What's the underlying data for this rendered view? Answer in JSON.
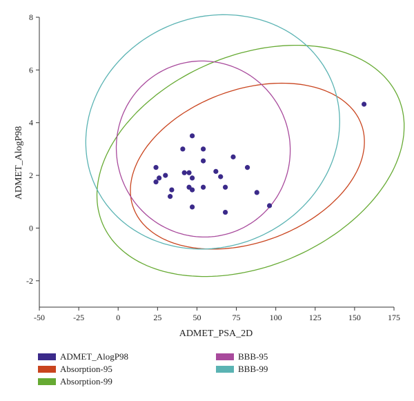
{
  "chart_data": {
    "type": "scatter",
    "xlabel": "ADMET_PSA_2D",
    "ylabel": "ADMET_AlogP98",
    "xlim": [
      -50,
      175
    ],
    "ylim": [
      -3,
      8
    ],
    "x_ticks": [
      -50,
      -25,
      0,
      25,
      50,
      75,
      100,
      125,
      150,
      175
    ],
    "y_ticks": [
      -2,
      0,
      2,
      4,
      6,
      8
    ],
    "grid": false,
    "legend_position": "bottom",
    "points": {
      "name": "ADMET_AlogP98",
      "color": "#3b2a8a",
      "x": [
        47,
        41,
        54,
        73,
        54,
        24,
        30,
        26,
        24,
        45,
        42,
        47,
        62,
        65,
        82,
        45,
        47,
        54,
        68,
        34,
        88,
        33,
        47,
        96,
        68,
        156
      ],
      "y": [
        3.5,
        3.0,
        3.0,
        2.7,
        2.55,
        2.3,
        2.0,
        1.9,
        1.75,
        2.1,
        2.1,
        1.9,
        2.15,
        1.95,
        2.3,
        1.55,
        1.45,
        1.55,
        1.55,
        1.45,
        1.35,
        1.2,
        0.8,
        0.85,
        0.6,
        4.7
      ]
    },
    "ellipses": [
      {
        "name": "Absorption-95",
        "color": "#c9441e",
        "cx": 82,
        "cy": 2.35,
        "rx": 77,
        "ry": 2.9,
        "angle": -20
      },
      {
        "name": "Absorption-99",
        "color": "#66aa33",
        "cx": 84,
        "cy": 2.55,
        "rx": 102,
        "ry": 4.0,
        "angle": -23
      },
      {
        "name": "BBB-95",
        "color": "#a84a9c",
        "cx": 54,
        "cy": 3.0,
        "rx": 55,
        "ry": 3.35,
        "angle": -25
      },
      {
        "name": "BBB-99",
        "color": "#5ab3b3",
        "cx": 60,
        "cy": 3.65,
        "rx": 82,
        "ry": 4.35,
        "angle": -24
      }
    ]
  },
  "legend": {
    "items": [
      {
        "label": "ADMET_AlogP98",
        "color": "#3b2a8a"
      },
      {
        "label": "Absorption-95",
        "color": "#c9441e"
      },
      {
        "label": "Absorption-99",
        "color": "#66aa33"
      },
      {
        "label": "BBB-95",
        "color": "#a84a9c"
      },
      {
        "label": "BBB-99",
        "color": "#5ab3b3"
      }
    ]
  }
}
